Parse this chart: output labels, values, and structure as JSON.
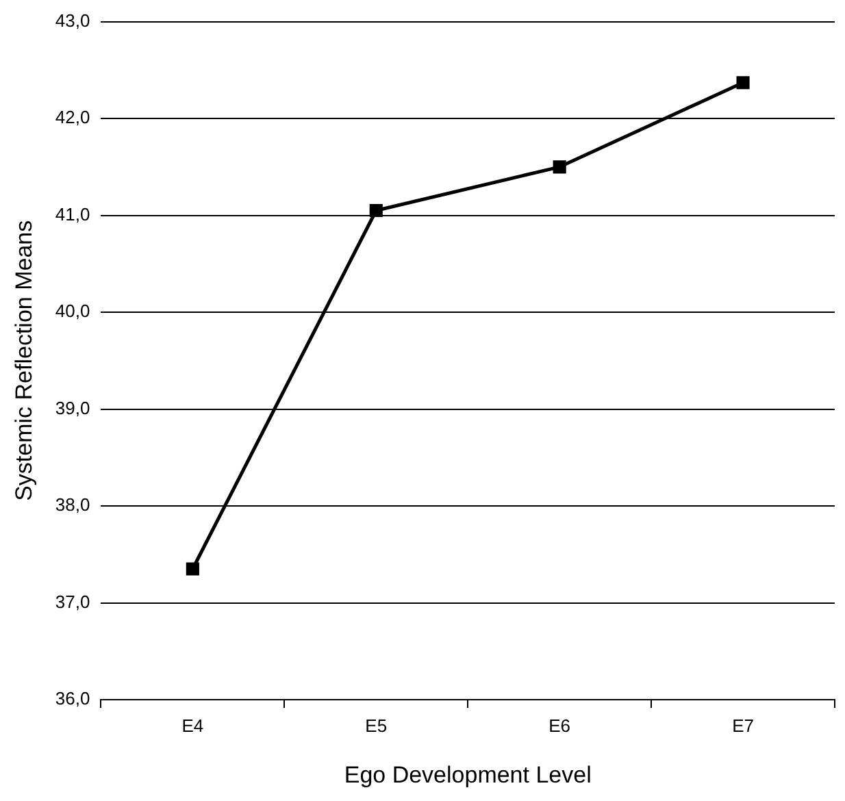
{
  "chart_data": {
    "type": "line",
    "xlabel": "Ego Development Level",
    "ylabel": "Systemic Reflection Means",
    "categories": [
      "E4",
      "E5",
      "E6",
      "E7"
    ],
    "series": [
      {
        "color": "#000000",
        "values": [
          37.35,
          41.05,
          41.5,
          42.37
        ]
      }
    ],
    "ylim": [
      36,
      43
    ],
    "yticks": [
      {
        "value": 36,
        "label": "36,0"
      },
      {
        "value": 37,
        "label": "37,0"
      },
      {
        "value": 38,
        "label": "38,0"
      },
      {
        "value": 39,
        "label": "39,0"
      },
      {
        "value": 40,
        "label": "40,0"
      },
      {
        "value": 41,
        "label": "41,0"
      },
      {
        "value": 42,
        "label": "42,0"
      },
      {
        "value": 43,
        "label": "43,0"
      }
    ],
    "grid": "y",
    "legend": false,
    "marker": "square",
    "line_style": "solid"
  }
}
